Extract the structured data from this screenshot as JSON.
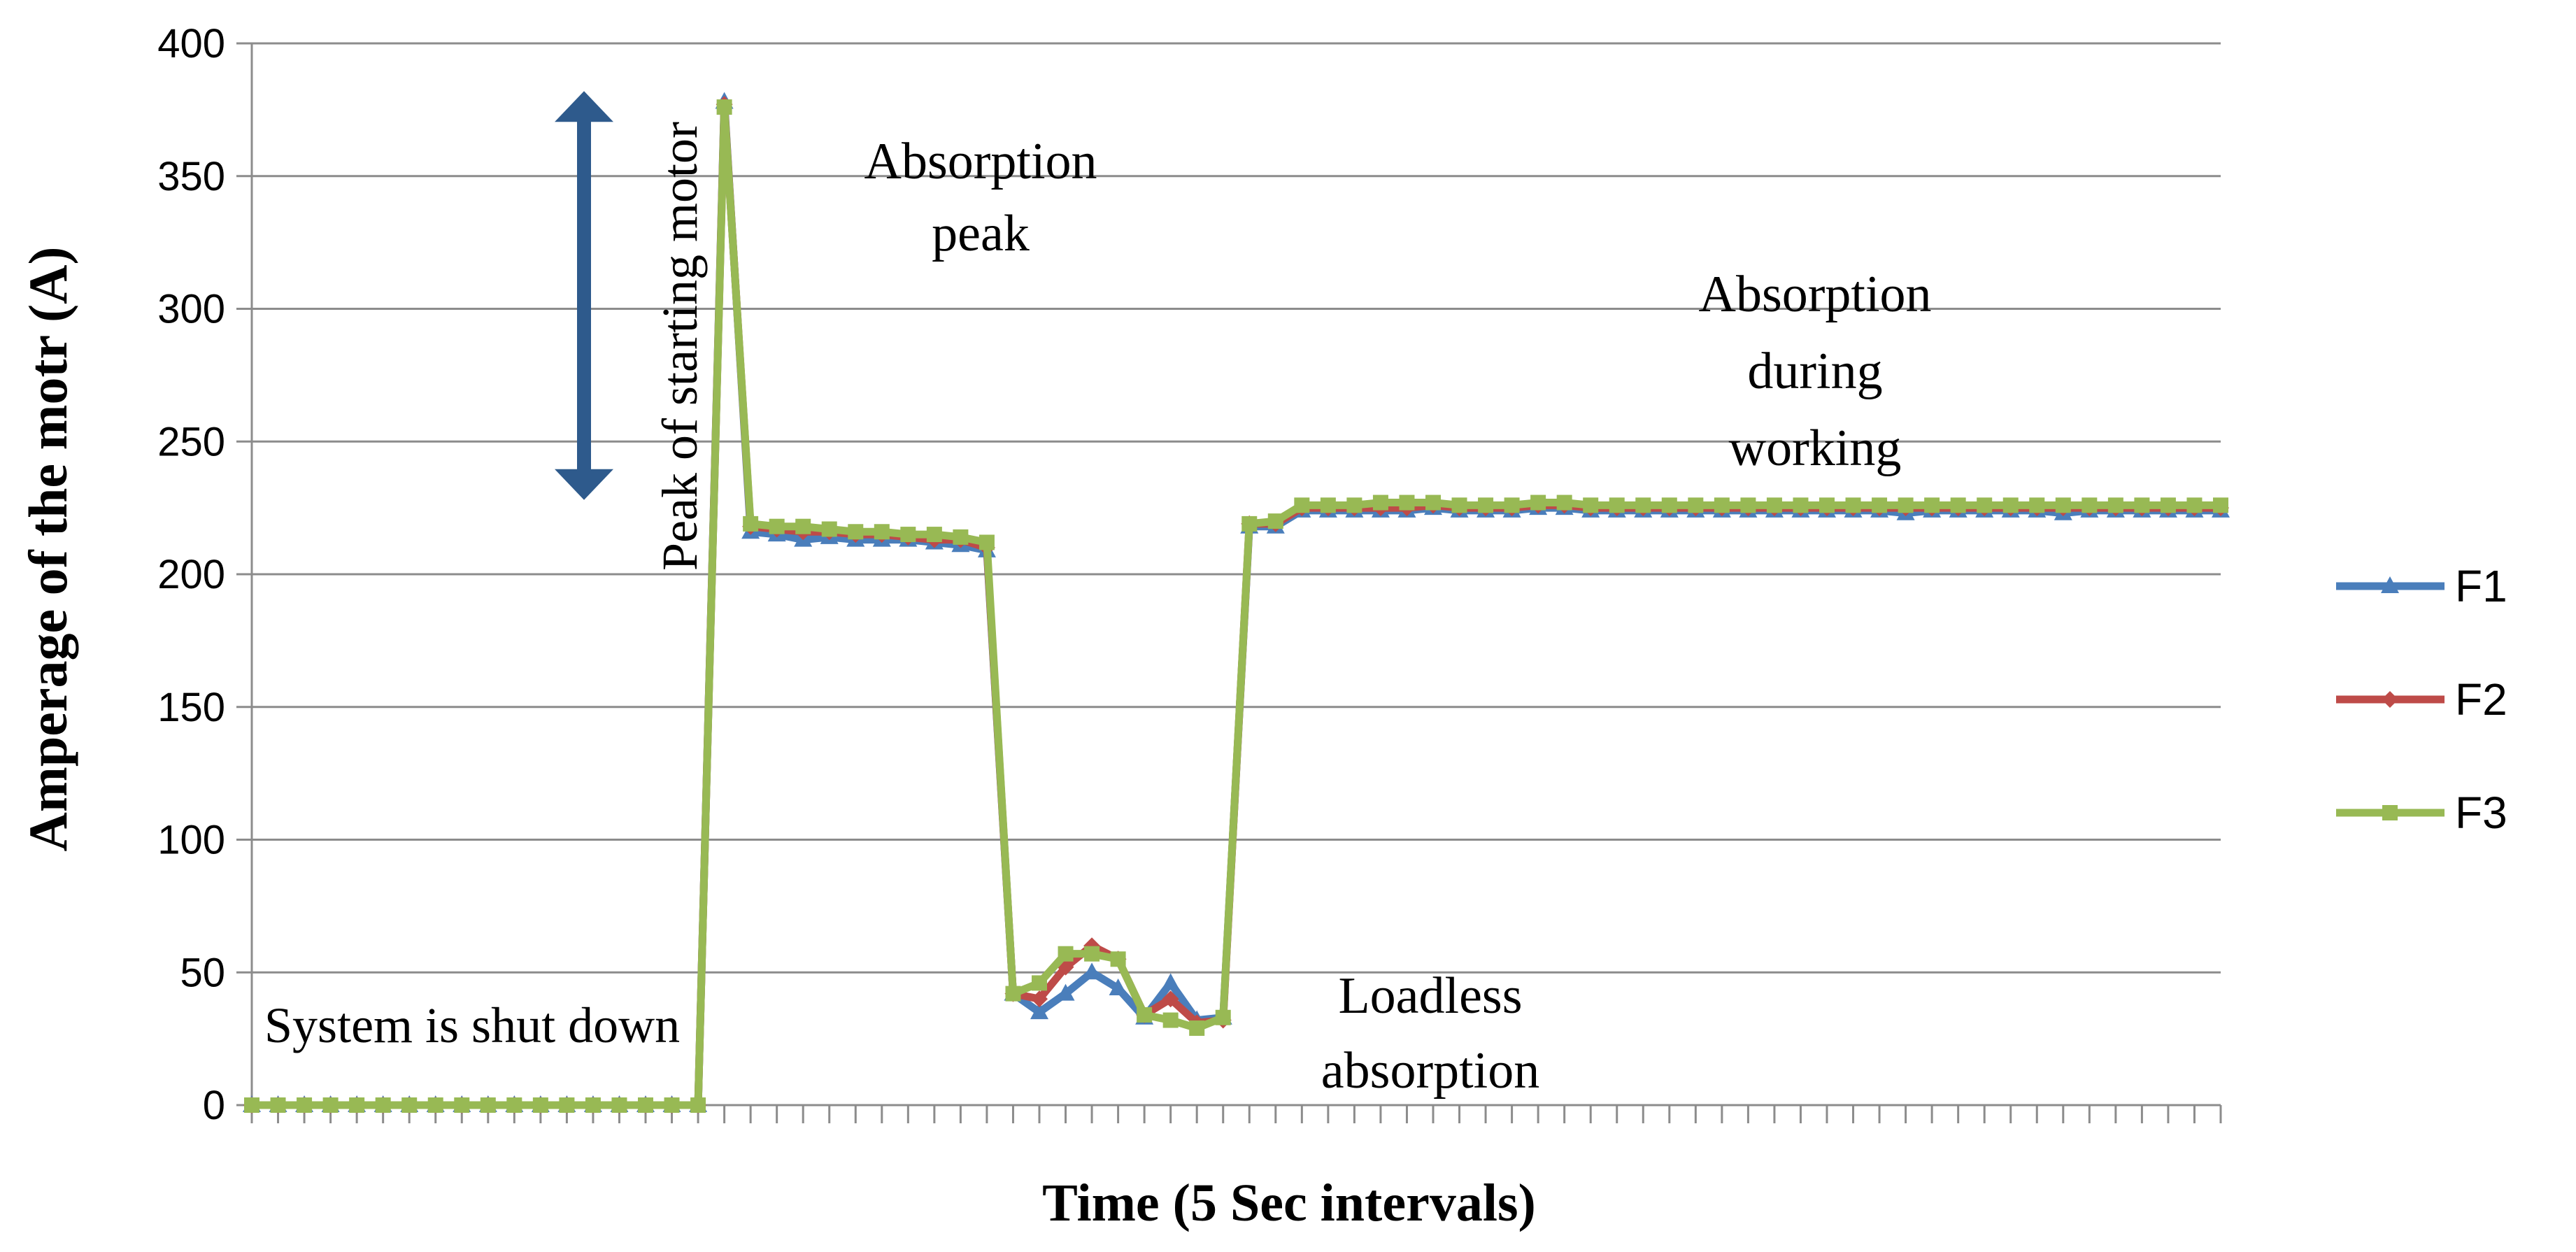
{
  "chart_data": {
    "type": "line",
    "title": "",
    "xlabel": "Time (5 Sec intervals)",
    "ylabel": "Amperage of the motr  (A)",
    "ylim": [
      0,
      400
    ],
    "yticks": [
      0,
      50,
      100,
      150,
      200,
      250,
      300,
      350,
      400
    ],
    "grid": "horizontal",
    "legend_position": "right",
    "x": [
      1,
      2,
      3,
      4,
      5,
      6,
      7,
      8,
      9,
      10,
      11,
      12,
      13,
      14,
      15,
      16,
      17,
      18,
      19,
      20,
      21,
      22,
      23,
      24,
      25,
      26,
      27,
      28,
      29,
      30,
      31,
      32,
      33,
      34,
      35,
      36,
      37,
      38,
      39,
      40,
      41,
      42,
      43,
      44,
      45,
      46,
      47,
      48,
      49,
      50,
      51,
      52,
      53,
      54,
      55,
      56,
      57,
      58,
      59,
      60,
      61,
      62,
      63,
      64,
      65,
      66,
      67,
      68,
      69,
      70,
      71,
      72,
      73,
      74,
      75,
      76
    ],
    "series": [
      {
        "name": "F1",
        "color": "#4a7ebb",
        "marker": "triangle",
        "values": [
          0,
          0,
          0,
          0,
          0,
          0,
          0,
          0,
          0,
          0,
          0,
          0,
          0,
          0,
          0,
          0,
          0,
          0,
          378,
          216,
          215,
          213,
          214,
          213,
          213,
          213,
          212,
          211,
          209,
          42,
          35,
          42,
          50,
          44,
          33,
          46,
          32,
          33,
          218,
          218,
          224,
          224,
          224,
          224,
          224,
          225,
          224,
          224,
          224,
          225,
          225,
          224,
          224,
          224,
          224,
          224,
          224,
          224,
          224,
          224,
          224,
          224,
          224,
          223,
          224,
          224,
          224,
          224,
          224,
          223,
          224,
          224,
          224,
          224,
          224,
          224
        ]
      },
      {
        "name": "F2",
        "color": "#be4b48",
        "marker": "diamond",
        "values": [
          0,
          0,
          0,
          0,
          0,
          0,
          0,
          0,
          0,
          0,
          0,
          0,
          0,
          0,
          0,
          0,
          0,
          0,
          377,
          218,
          217,
          216,
          216,
          215,
          215,
          214,
          213,
          213,
          210,
          42,
          40,
          52,
          60,
          55,
          34,
          40,
          31,
          32,
          219,
          219,
          225,
          225,
          225,
          225,
          225,
          226,
          225,
          225,
          225,
          226,
          226,
          225,
          225,
          225,
          225,
          225,
          225,
          225,
          225,
          225,
          225,
          225,
          225,
          225,
          225,
          225,
          225,
          225,
          225,
          225,
          225,
          225,
          225,
          225,
          225,
          225
        ]
      },
      {
        "name": "F3",
        "color": "#98b954",
        "marker": "square",
        "values": [
          0,
          0,
          0,
          0,
          0,
          0,
          0,
          0,
          0,
          0,
          0,
          0,
          0,
          0,
          0,
          0,
          0,
          0,
          376,
          219,
          218,
          218,
          217,
          216,
          216,
          215,
          215,
          214,
          212,
          42,
          46,
          57,
          57,
          55,
          34,
          32,
          29,
          33,
          219,
          220,
          226,
          226,
          226,
          227,
          227,
          227,
          226,
          226,
          226,
          227,
          227,
          226,
          226,
          226,
          226,
          226,
          226,
          226,
          226,
          226,
          226,
          226,
          226,
          226,
          226,
          226,
          226,
          226,
          226,
          226,
          226,
          226,
          226,
          226,
          226,
          226
        ]
      }
    ],
    "annotations": [
      {
        "id": "peak-start",
        "text": "Peak of starting motor",
        "rotation": "vertical"
      },
      {
        "id": "absorption-peak",
        "lines": [
          "Absorption",
          "peak"
        ]
      },
      {
        "id": "absorption-working",
        "lines": [
          "Absorption",
          "during",
          "working"
        ]
      },
      {
        "id": "shutdown",
        "text": "System is shut down"
      },
      {
        "id": "loadless",
        "lines": [
          "Loadless",
          "absorption"
        ]
      }
    ],
    "arrow": {
      "label": "double-arrow",
      "from_value": 228,
      "to_value": 382,
      "color": "#2e5a8c"
    }
  }
}
